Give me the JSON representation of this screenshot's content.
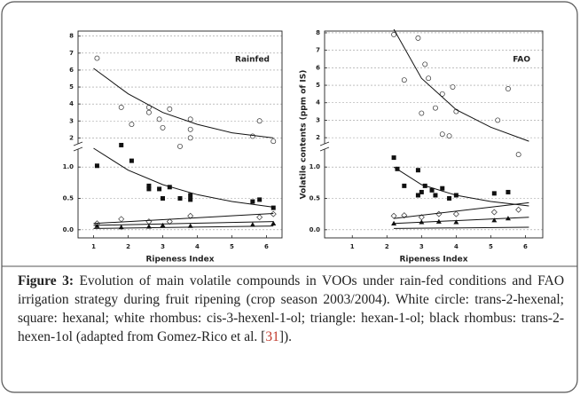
{
  "chart_data": [
    {
      "type": "scatter",
      "title": "Rainfed",
      "xlabel": "Ripeness Index",
      "xlim": [
        0.55,
        6.45
      ],
      "xticks": [
        1,
        2,
        3,
        4,
        5,
        6
      ],
      "grid": true,
      "upper": {
        "ylim": [
          1.6,
          8.3
        ],
        "yticks": [
          2,
          3,
          4,
          5,
          6,
          7,
          8
        ]
      },
      "lower": {
        "ylim": [
          -0.13,
          1.3
        ],
        "yticks": [
          {
            "value": 0,
            "label": "0.0"
          },
          {
            "value": 0.5,
            "label": "0.5"
          },
          {
            "value": 1,
            "label": "1.0"
          }
        ]
      },
      "series": [
        {
          "marker": "circle-open",
          "panel": "upper",
          "x": [
            1.1,
            1.8,
            2.1,
            2.6,
            2.6,
            2.9,
            3.0,
            3.2,
            3.5,
            3.8,
            3.8,
            3.8,
            5.6,
            5.8,
            6.2
          ],
          "values": [
            6.7,
            3.8,
            2.8,
            3.8,
            3.5,
            3.1,
            2.6,
            3.7,
            1.5,
            2.5,
            3.1,
            2.0,
            2.1,
            3.0,
            1.8
          ]
        },
        {
          "marker": "line",
          "panel": "upper",
          "x": [
            1,
            2,
            3,
            4,
            5,
            6.2
          ],
          "values": [
            6.1,
            4.6,
            3.5,
            2.8,
            2.3,
            2.0
          ]
        },
        {
          "marker": "square-filled",
          "panel": "lower",
          "x": [
            1.1,
            1.8,
            2.1,
            2.6,
            2.6,
            2.9,
            3.0,
            3.2,
            3.5,
            3.8,
            3.8,
            5.6,
            5.8,
            6.2
          ],
          "values": [
            1.02,
            1.35,
            1.1,
            0.65,
            0.7,
            0.65,
            0.5,
            0.68,
            0.5,
            0.48,
            0.55,
            0.45,
            0.48,
            0.35
          ]
        },
        {
          "marker": "line",
          "panel": "lower",
          "x": [
            1,
            2,
            3,
            4,
            5,
            6.2
          ],
          "values": [
            1.3,
            0.95,
            0.72,
            0.56,
            0.45,
            0.36
          ]
        },
        {
          "marker": "diamond-open",
          "panel": "lower",
          "x": [
            1.1,
            1.8,
            2.6,
            3.2,
            3.8,
            5.8,
            6.2
          ],
          "values": [
            0.1,
            0.17,
            0.13,
            0.13,
            0.22,
            0.2,
            0.25
          ]
        },
        {
          "marker": "line",
          "panel": "lower",
          "x": [
            1,
            6.2
          ],
          "values": [
            0.1,
            0.26
          ]
        },
        {
          "marker": "triangle-filled",
          "panel": "lower",
          "x": [
            1.1,
            1.8,
            2.6,
            3.0,
            3.8,
            5.6,
            6.2
          ],
          "values": [
            0.06,
            0.04,
            0.05,
            0.07,
            0.06,
            0.08,
            0.1
          ]
        },
        {
          "marker": "line",
          "panel": "lower",
          "x": [
            1,
            6.2
          ],
          "values": [
            0.07,
            0.13
          ]
        },
        {
          "marker": "line",
          "panel": "lower",
          "x": [
            1,
            6.2
          ],
          "values": [
            0.02,
            0.06
          ]
        }
      ]
    },
    {
      "type": "scatter",
      "title": "FAO",
      "xlabel": "Ripeness Index",
      "ylabel": "Volatile contents (ppm of IS)",
      "xlim": [
        0.2,
        6.5
      ],
      "xticks": [
        1,
        2,
        3,
        4,
        5,
        6
      ],
      "grid": true,
      "upper": {
        "ylim": [
          1.6,
          8.1
        ],
        "yticks": [
          2,
          3,
          4,
          5,
          6,
          7,
          8
        ]
      },
      "lower": {
        "ylim": [
          -0.13,
          1.3
        ],
        "yticks": [
          {
            "value": 0,
            "label": "0.0"
          },
          {
            "value": 0.5,
            "label": "0.5"
          },
          {
            "value": 1,
            "label": "1.0"
          }
        ]
      },
      "series": [
        {
          "marker": "circle-open",
          "panel": "upper",
          "x": [
            2.2,
            2.5,
            2.9,
            3.0,
            3.1,
            3.2,
            3.4,
            3.6,
            3.6,
            3.8,
            3.9,
            4.0,
            5.2,
            5.5
          ],
          "values": [
            7.9,
            5.3,
            7.7,
            3.4,
            6.2,
            5.4,
            3.7,
            4.5,
            2.2,
            2.1,
            4.9,
            3.5,
            3.0,
            4.8
          ]
        },
        {
          "marker": "circle-open",
          "panel": "lower",
          "x": [
            5.8
          ],
          "values": [
            1.2
          ]
        },
        {
          "marker": "line",
          "panel": "upper",
          "x": [
            2.2,
            3,
            4,
            5,
            6.1
          ],
          "values": [
            8.2,
            5.4,
            3.6,
            2.6,
            1.8
          ]
        },
        {
          "marker": "square-filled",
          "panel": "lower",
          "x": [
            2.2,
            2.3,
            2.5,
            2.9,
            2.9,
            3.0,
            3.1,
            3.3,
            3.4,
            3.6,
            3.8,
            4.0,
            5.1,
            5.5
          ],
          "values": [
            1.15,
            0.97,
            0.7,
            0.95,
            0.55,
            0.6,
            0.7,
            0.63,
            0.55,
            0.66,
            0.5,
            0.55,
            0.58,
            0.6
          ]
        },
        {
          "marker": "line",
          "panel": "lower",
          "x": [
            2.2,
            3,
            4,
            5,
            6.1
          ],
          "values": [
            1.0,
            0.72,
            0.55,
            0.45,
            0.38
          ]
        },
        {
          "marker": "diamond-open",
          "panel": "lower",
          "x": [
            2.2,
            2.5,
            3,
            3.5,
            4,
            5.1,
            5.8
          ],
          "values": [
            0.22,
            0.23,
            0.2,
            0.25,
            0.25,
            0.28,
            0.32
          ]
        },
        {
          "marker": "line",
          "panel": "lower",
          "x": [
            2.2,
            6.1
          ],
          "values": [
            0.18,
            0.43
          ]
        },
        {
          "marker": "triangle-filled",
          "panel": "lower",
          "x": [
            2.2,
            3,
            3.5,
            4,
            5.1,
            5.5
          ],
          "values": [
            0.1,
            0.12,
            0.13,
            0.12,
            0.15,
            0.18
          ]
        },
        {
          "marker": "line",
          "panel": "lower",
          "x": [
            2.2,
            6.1
          ],
          "values": [
            0.1,
            0.2
          ]
        },
        {
          "marker": "line",
          "panel": "lower",
          "x": [
            2.2,
            6.1
          ],
          "values": [
            0.02,
            0.04
          ]
        }
      ]
    }
  ],
  "caption": {
    "label": "Figure 3:",
    "text": "Evolution of main volatile compounds in VOOs under rain-fed conditions and FAO irrigation strategy during fruit ripening (crop season 2003/2004). White circle: trans-2-hexenal; square: hexanal; white rhombus: cis-3-hexenl-1-ol; triangle: hexan-1-ol; black rhombus: trans-2-hexen-1ol (adapted from Gomez-Rico et al. [",
    "ref": "31",
    "end": "])."
  }
}
